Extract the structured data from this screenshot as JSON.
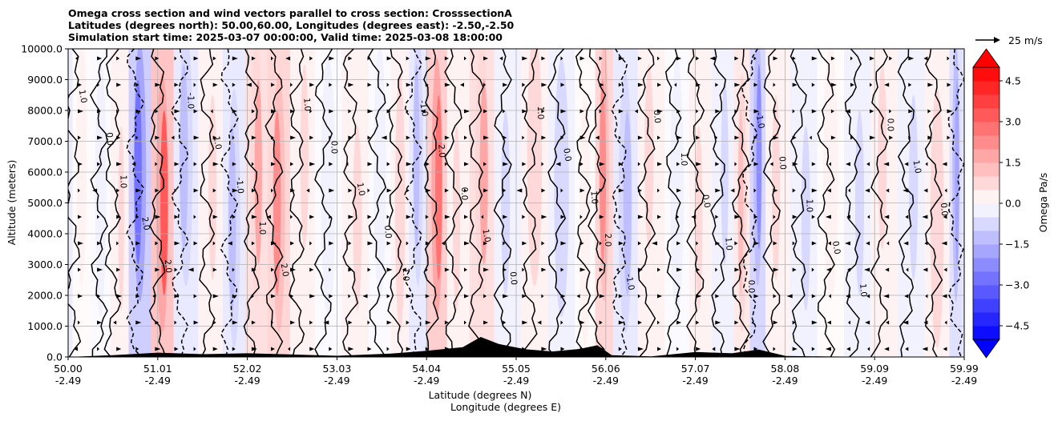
{
  "title_lines": [
    "Omega cross section and wind vectors parallel to cross section: CrosssectionA",
    "Latitudes (degrees north): 50.00,60.00, Longitudes (degrees east): -2.50,-2.50",
    "Simulation start time: 2025-03-07 00:00:00, Valid time: 2025-03-08 18:00:00"
  ],
  "chart_data": {
    "type": "heatmap",
    "ylabel": "Altitude (meters)",
    "xlabel_lines": [
      "Latitude (degrees N)",
      "Longitude (degrees E)"
    ],
    "ylim": [
      0,
      10000
    ],
    "y_ticks": [
      0,
      1000,
      2000,
      3000,
      4000,
      5000,
      6000,
      7000,
      8000,
      9000,
      10000
    ],
    "y_tick_labels": [
      "0.0",
      "1000.0",
      "2000.0",
      "3000.0",
      "4000.0",
      "5000.0",
      "6000.0",
      "7000.0",
      "8000.0",
      "9000.0",
      "10000.0"
    ],
    "xlim": [
      50.0,
      59.99
    ],
    "x_ticks": [
      {
        "lat": "50.00",
        "lon": "-2.49"
      },
      {
        "lat": "51.01",
        "lon": "-2.49"
      },
      {
        "lat": "52.02",
        "lon": "-2.49"
      },
      {
        "lat": "53.03",
        "lon": "-2.49"
      },
      {
        "lat": "54.04",
        "lon": "-2.49"
      },
      {
        "lat": "55.05",
        "lon": "-2.49"
      },
      {
        "lat": "56.06",
        "lon": "-2.49"
      },
      {
        "lat": "57.07",
        "lon": "-2.49"
      },
      {
        "lat": "58.08",
        "lon": "-2.49"
      },
      {
        "lat": "59.09",
        "lon": "-2.49"
      },
      {
        "lat": "59.99",
        "lon": "-2.49"
      }
    ],
    "grid": true,
    "colorbar": {
      "label": "Omega Pa/s",
      "min": -5.0,
      "max": 5.0,
      "step": 0.5,
      "tick_values": [
        4.5,
        3.0,
        1.5,
        0.0,
        -1.5,
        -3.0,
        -4.5
      ],
      "tick_labels": [
        "4.5",
        "3.0",
        "1.5",
        "0.0",
        "−1.5",
        "−3.0",
        "−4.5"
      ],
      "extend": "both",
      "colormap": "bwr"
    },
    "contour_labels": [
      "0.0",
      "1.0",
      "-1.0",
      "2.0"
    ],
    "omega_bands": [
      {
        "lat": 50.1,
        "omega": 0.4
      },
      {
        "lat": 50.4,
        "omega": -0.3
      },
      {
        "lat": 50.55,
        "omega": 0.8
      },
      {
        "lat": 50.8,
        "omega": -2.8
      },
      {
        "lat": 51.05,
        "omega": 3.2
      },
      {
        "lat": 51.3,
        "omega": -1.2
      },
      {
        "lat": 51.6,
        "omega": 0.6
      },
      {
        "lat": 51.85,
        "omega": -1.0
      },
      {
        "lat": 52.1,
        "omega": 1.5
      },
      {
        "lat": 52.35,
        "omega": 2.3
      },
      {
        "lat": 52.6,
        "omega": 0.5
      },
      {
        "lat": 52.9,
        "omega": -0.4
      },
      {
        "lat": 53.2,
        "omega": 0.7
      },
      {
        "lat": 53.5,
        "omega": -0.3
      },
      {
        "lat": 53.7,
        "omega": 0.9
      },
      {
        "lat": 53.9,
        "omega": -1.4
      },
      {
        "lat": 54.1,
        "omega": 2.6
      },
      {
        "lat": 54.35,
        "omega": 0.6
      },
      {
        "lat": 54.6,
        "omega": 1.6
      },
      {
        "lat": 54.9,
        "omega": -0.5
      },
      {
        "lat": 55.2,
        "omega": 0.9
      },
      {
        "lat": 55.5,
        "omega": -0.9
      },
      {
        "lat": 55.8,
        "omega": 0.4
      },
      {
        "lat": 55.95,
        "omega": 2.1
      },
      {
        "lat": 56.2,
        "omega": -1.1
      },
      {
        "lat": 56.5,
        "omega": 0.7
      },
      {
        "lat": 56.8,
        "omega": -0.4
      },
      {
        "lat": 57.05,
        "omega": 0.6
      },
      {
        "lat": 57.3,
        "omega": -0.8
      },
      {
        "lat": 57.55,
        "omega": 1.2
      },
      {
        "lat": 57.65,
        "omega": -2.0
      },
      {
        "lat": 57.9,
        "omega": 0.5
      },
      {
        "lat": 58.2,
        "omega": -0.6
      },
      {
        "lat": 58.5,
        "omega": 0.3
      },
      {
        "lat": 58.8,
        "omega": -0.5
      },
      {
        "lat": 59.1,
        "omega": 0.8
      },
      {
        "lat": 59.4,
        "omega": -0.7
      },
      {
        "lat": 59.7,
        "omega": 0.9
      },
      {
        "lat": 59.95,
        "omega": -1.8
      }
    ],
    "terrain": [
      {
        "lat": 50.0,
        "alt": 0
      },
      {
        "lat": 50.5,
        "alt": 60
      },
      {
        "lat": 51.0,
        "alt": 140
      },
      {
        "lat": 51.5,
        "alt": 90
      },
      {
        "lat": 52.0,
        "alt": 120
      },
      {
        "lat": 52.5,
        "alt": 80
      },
      {
        "lat": 53.0,
        "alt": 40
      },
      {
        "lat": 53.6,
        "alt": 110
      },
      {
        "lat": 54.0,
        "alt": 200
      },
      {
        "lat": 54.4,
        "alt": 320
      },
      {
        "lat": 54.6,
        "alt": 650
      },
      {
        "lat": 54.8,
        "alt": 420
      },
      {
        "lat": 55.1,
        "alt": 250
      },
      {
        "lat": 55.4,
        "alt": 180
      },
      {
        "lat": 55.7,
        "alt": 260
      },
      {
        "lat": 55.9,
        "alt": 380
      },
      {
        "lat": 56.06,
        "alt": 60
      },
      {
        "lat": 56.5,
        "alt": 20
      },
      {
        "lat": 57.0,
        "alt": 160
      },
      {
        "lat": 57.4,
        "alt": 120
      },
      {
        "lat": 57.7,
        "alt": 240
      },
      {
        "lat": 58.0,
        "alt": 30
      },
      {
        "lat": 59.0,
        "alt": 0
      },
      {
        "lat": 59.99,
        "alt": 0
      }
    ]
  },
  "vector_key": {
    "label": "25 m/s"
  }
}
